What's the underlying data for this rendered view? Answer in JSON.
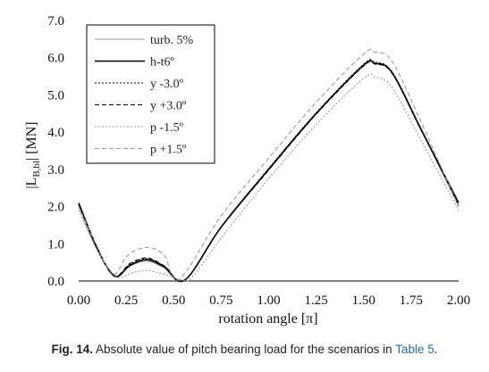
{
  "chart_data": {
    "type": "line",
    "xlabel": "rotation angle [π]",
    "ylabel": "|L_B,bl| [MN]",
    "ylabel_main": "|L",
    "ylabel_sub": "B,bl",
    "ylabel_tail": "| [MN]",
    "xlim": [
      0,
      2
    ],
    "ylim": [
      0,
      7
    ],
    "x_ticks": [
      "0.00",
      "0.25",
      "0.50",
      "0.75",
      "1.00",
      "1.25",
      "1.50",
      "1.75",
      "2.00"
    ],
    "y_ticks": [
      "0.0",
      "1.0",
      "2.0",
      "3.0",
      "4.0",
      "5.0",
      "6.0",
      "7.0"
    ],
    "grid": false,
    "legend_position": "top-left",
    "series": [
      {
        "name": "turb. 5%",
        "color": "#9a9a9a",
        "dash": "solid",
        "width": 1.0,
        "x": [
          0,
          0.1,
          0.19,
          0.27,
          0.36,
          0.45,
          0.56,
          0.75,
          1.0,
          1.25,
          1.5,
          1.56,
          1.65,
          1.8,
          2.0
        ],
        "y": [
          2.0,
          0.8,
          0.12,
          0.4,
          0.53,
          0.35,
          0.03,
          1.45,
          3.02,
          4.5,
          5.8,
          5.84,
          5.6,
          4.1,
          2.0
        ]
      },
      {
        "name": "h-t6º",
        "color": "#000000",
        "dash": "solid",
        "width": 1.6,
        "x": [
          0,
          0.1,
          0.19,
          0.27,
          0.36,
          0.45,
          0.56,
          0.75,
          1.0,
          1.25,
          1.5,
          1.56,
          1.65,
          1.8,
          2.0
        ],
        "y": [
          2.1,
          0.85,
          0.13,
          0.42,
          0.57,
          0.38,
          0.03,
          1.45,
          3.0,
          4.5,
          5.8,
          5.85,
          5.6,
          4.1,
          2.1
        ]
      },
      {
        "name": "y -3.0º",
        "color": "#000000",
        "dash": "2,2",
        "width": 1.1,
        "x": [
          0,
          0.1,
          0.19,
          0.27,
          0.36,
          0.45,
          0.56,
          0.75,
          1.0,
          1.25,
          1.5,
          1.56,
          1.65,
          1.8,
          2.0
        ],
        "y": [
          2.05,
          0.85,
          0.13,
          0.45,
          0.6,
          0.4,
          0.03,
          1.46,
          3.02,
          4.52,
          5.83,
          5.88,
          5.62,
          4.12,
          2.05
        ]
      },
      {
        "name": "y +3.0º",
        "color": "#000000",
        "dash": "5,3",
        "width": 1.1,
        "x": [
          0,
          0.1,
          0.19,
          0.27,
          0.36,
          0.45,
          0.56,
          0.75,
          1.0,
          1.25,
          1.5,
          1.56,
          1.65,
          1.8,
          2.0
        ],
        "y": [
          2.08,
          0.87,
          0.14,
          0.47,
          0.62,
          0.41,
          0.03,
          1.44,
          2.98,
          4.48,
          5.78,
          5.83,
          5.58,
          4.08,
          2.08
        ]
      },
      {
        "name": "p -1.5º",
        "color": "#9a9a9a",
        "dash": "2,2",
        "width": 1.1,
        "x": [
          0,
          0.1,
          0.2,
          0.28,
          0.36,
          0.45,
          0.55,
          0.6,
          0.75,
          1.0,
          1.25,
          1.5,
          1.56,
          1.65,
          1.8,
          2.0
        ],
        "y": [
          1.9,
          0.8,
          0.12,
          0.22,
          0.28,
          0.18,
          0.02,
          0.12,
          1.15,
          2.75,
          4.2,
          5.45,
          5.48,
          5.2,
          3.8,
          1.9
        ]
      },
      {
        "name": "p +1.5º",
        "color": "#9a9a9a",
        "dash": "5,3",
        "width": 1.1,
        "x": [
          0,
          0.1,
          0.18,
          0.26,
          0.36,
          0.45,
          0.53,
          0.75,
          1.0,
          1.25,
          1.5,
          1.56,
          1.65,
          1.8,
          2.0
        ],
        "y": [
          2.0,
          0.9,
          0.16,
          0.7,
          0.9,
          0.7,
          0.05,
          1.75,
          3.3,
          4.8,
          6.1,
          6.15,
          5.9,
          4.3,
          2.0
        ]
      }
    ]
  },
  "caption": {
    "label": "Fig. 14.",
    "text": "Absolute value of pitch bearing load for the scenarios in",
    "link": "Table 5",
    "tail": "."
  }
}
